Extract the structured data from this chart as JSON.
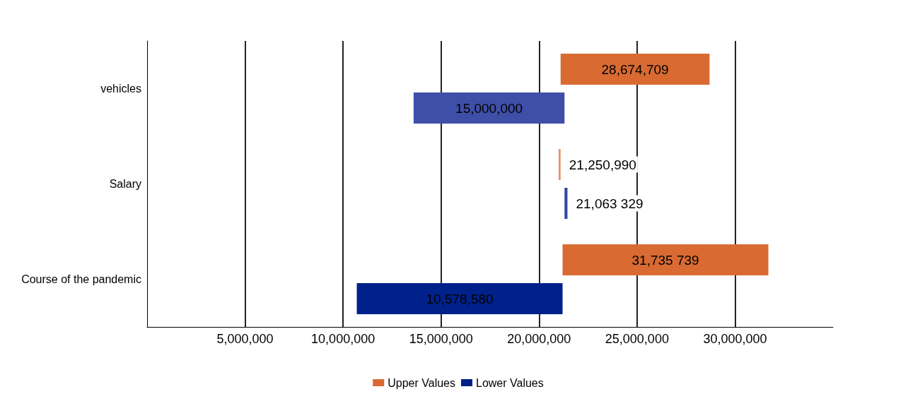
{
  "chart_data": {
    "type": "bar",
    "orientation": "horizontal",
    "categories": [
      "vehicles",
      "Salary",
      "Course of the pandemic"
    ],
    "series": [
      {
        "name": "Upper Values",
        "color": "#d96a32",
        "colors": [
          "#d96a32",
          "#e8926a",
          "#d96a32"
        ],
        "base": [
          21100000,
          21000000,
          21200000
        ],
        "values": [
          7600000,
          100000,
          10500000
        ]
      },
      {
        "name": "Lower Values",
        "color": "#001f87",
        "colors": [
          "#3f4fa8",
          "#2e4aa0",
          "#00218a"
        ],
        "base": [
          13600000,
          21300000,
          10700000
        ],
        "values": [
          7700000,
          150000,
          10500000
        ]
      }
    ],
    "annotations": [
      "28,674,709",
      "15,000,000",
      "21,250,990",
      "21,063 329",
      "31,735 739",
      "10,578,580"
    ],
    "xlim": [
      0,
      35000000
    ],
    "xticks": [
      {
        "value": 5000000,
        "label": "5,000,000"
      },
      {
        "value": 10000000,
        "label": "10,000,000"
      },
      {
        "value": 15000000,
        "label": "15,000,000"
      },
      {
        "value": 20000000,
        "label": "20,000,000"
      },
      {
        "value": 25000000,
        "label": "25,000,000"
      },
      {
        "value": 30000000,
        "label": "30,000,000"
      }
    ],
    "grid": "x",
    "legend": "bottom"
  }
}
